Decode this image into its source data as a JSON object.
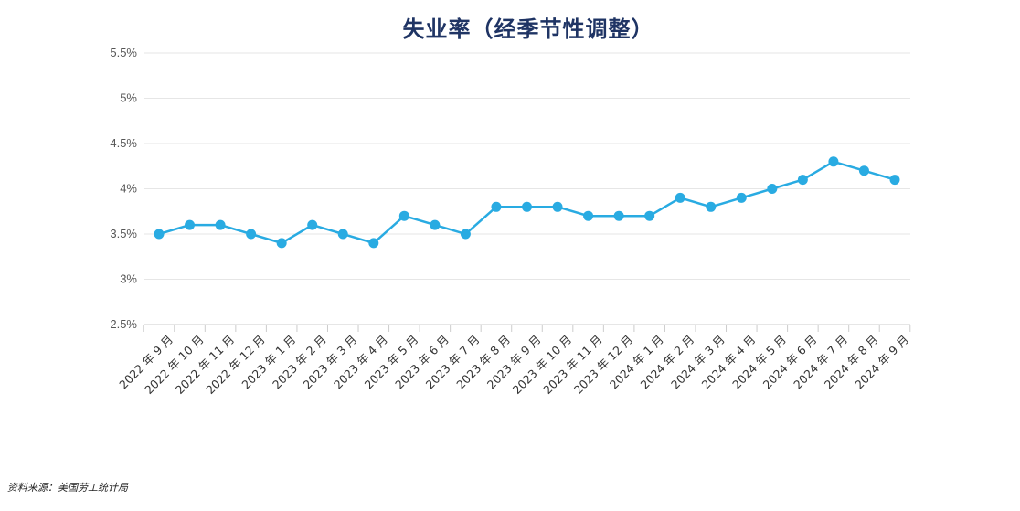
{
  "chart_data": {
    "type": "line",
    "title": "失业率（经季节性调整）",
    "xlabel": "",
    "ylabel": "",
    "categories": [
      "2022 年 9 月",
      "2022 年 10 月",
      "2022 年 11 月",
      "2022 年 12 月",
      "2023 年 1 月",
      "2023 年 2 月",
      "2023 年 3 月",
      "2023 年 4 月",
      "2023 年 5 月",
      "2023 年 6 月",
      "2023 年 7 月",
      "2023 年 8 月",
      "2023 年 9 月",
      "2023 年 10 月",
      "2023 年 11 月",
      "2023 年 12 月",
      "2024 年 1 月",
      "2024 年 2 月",
      "2024 年 3 月",
      "2024 年 4 月",
      "2024 年 5 月",
      "2024 年 6 月",
      "2024 年 7 月",
      "2024 年 8 月",
      "2024 年 9 月"
    ],
    "series": [
      {
        "values": [
          3.5,
          3.6,
          3.6,
          3.5,
          3.4,
          3.6,
          3.5,
          3.4,
          3.7,
          3.6,
          3.5,
          3.8,
          3.8,
          3.8,
          3.7,
          3.7,
          3.7,
          3.9,
          3.8,
          3.9,
          4.0,
          4.1,
          4.3,
          4.2,
          4.1
        ],
        "color": "#29abe2"
      }
    ],
    "ylim": [
      2.5,
      5.5
    ],
    "yticks": [
      2.5,
      3,
      3.5,
      4,
      4.5,
      5,
      5.5
    ],
    "ytick_labels": [
      "2.5%",
      "3%",
      "3.5%",
      "4%",
      "4.5%",
      "5%",
      "5.5%"
    ],
    "grid": true
  },
  "source": "资料来源：美国劳工统计局"
}
